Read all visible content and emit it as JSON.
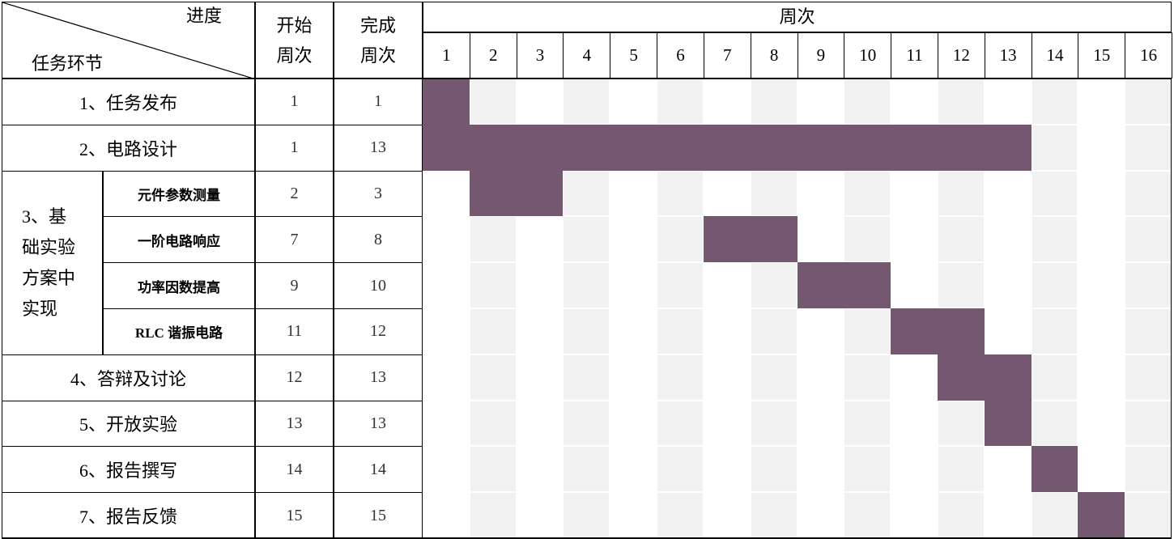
{
  "header": {
    "progress_label": "进度",
    "task_label": "任务环节",
    "start_label": "开始周次",
    "end_label": "完成周次",
    "weeks_label": "周次",
    "weeks": [
      "1",
      "2",
      "3",
      "4",
      "5",
      "6",
      "7",
      "8",
      "9",
      "10",
      "11",
      "12",
      "13",
      "14",
      "15",
      "16"
    ]
  },
  "group_label": "3、基础实验方案中实现",
  "rows": [
    {
      "task": "1、任务发布",
      "start": "1",
      "end": "1"
    },
    {
      "task": "2、电路设计",
      "start": "1",
      "end": "13"
    },
    {
      "task": "元件参数测量",
      "start": "2",
      "end": "3",
      "sub": true
    },
    {
      "task": "一阶电路响应",
      "start": "7",
      "end": "8",
      "sub": true
    },
    {
      "task": "功率因数提高",
      "start": "9",
      "end": "10",
      "sub": true
    },
    {
      "task": "RLC 谐振电路",
      "start": "11",
      "end": "12",
      "sub": true
    },
    {
      "task": "4、答辩及讨论",
      "start": "12",
      "end": "13"
    },
    {
      "task": "5、开放实验",
      "start": "13",
      "end": "13"
    },
    {
      "task": "6、报告撰写",
      "start": "14",
      "end": "14"
    },
    {
      "task": "7、报告反馈",
      "start": "15",
      "end": "15"
    }
  ],
  "colors": {
    "bar": "#74586f",
    "shade": "#f1f1f1",
    "grid": "#ffffff"
  }
}
